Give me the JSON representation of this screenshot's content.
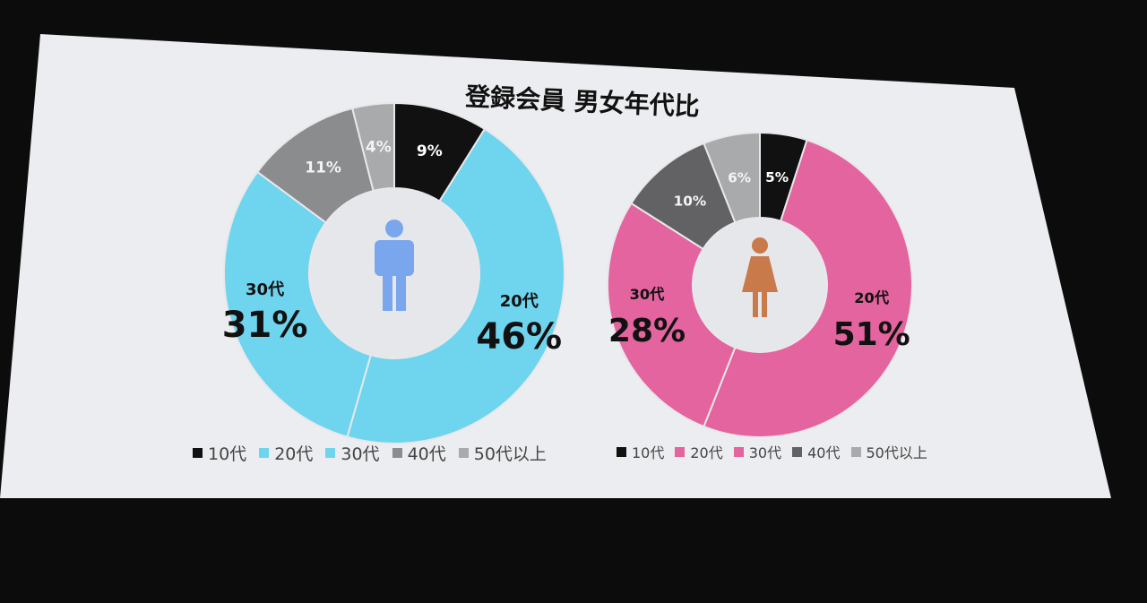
{
  "title": "登録会員 男女年代比",
  "chart_data": [
    {
      "type": "pie",
      "variant": "donut",
      "icon": "male-person-icon",
      "icon_color": "#7aa6ee",
      "categories": [
        "10代",
        "20代",
        "30代",
        "40代",
        "50代以上"
      ],
      "values": [
        9,
        46,
        31,
        11,
        4
      ],
      "labels": [
        "9%",
        "46%",
        "31%",
        "11%",
        "4%"
      ],
      "colors": [
        "#111111",
        "#6fd4ee",
        "#6fd4ee",
        "#8b8c8e",
        "#a9aaac"
      ],
      "legend": "bottom"
    },
    {
      "type": "pie",
      "variant": "donut",
      "icon": "female-person-icon",
      "icon_color": "#c97a4a",
      "categories": [
        "10代",
        "20代",
        "30代",
        "40代",
        "50代以上"
      ],
      "values": [
        5,
        51,
        28,
        10,
        6
      ],
      "labels": [
        "5%",
        "51%",
        "28%",
        "10%",
        "6%"
      ],
      "colors": [
        "#111111",
        "#e3649e",
        "#e3649e",
        "#626265",
        "#a9aaac"
      ],
      "legend": "bottom"
    }
  ]
}
